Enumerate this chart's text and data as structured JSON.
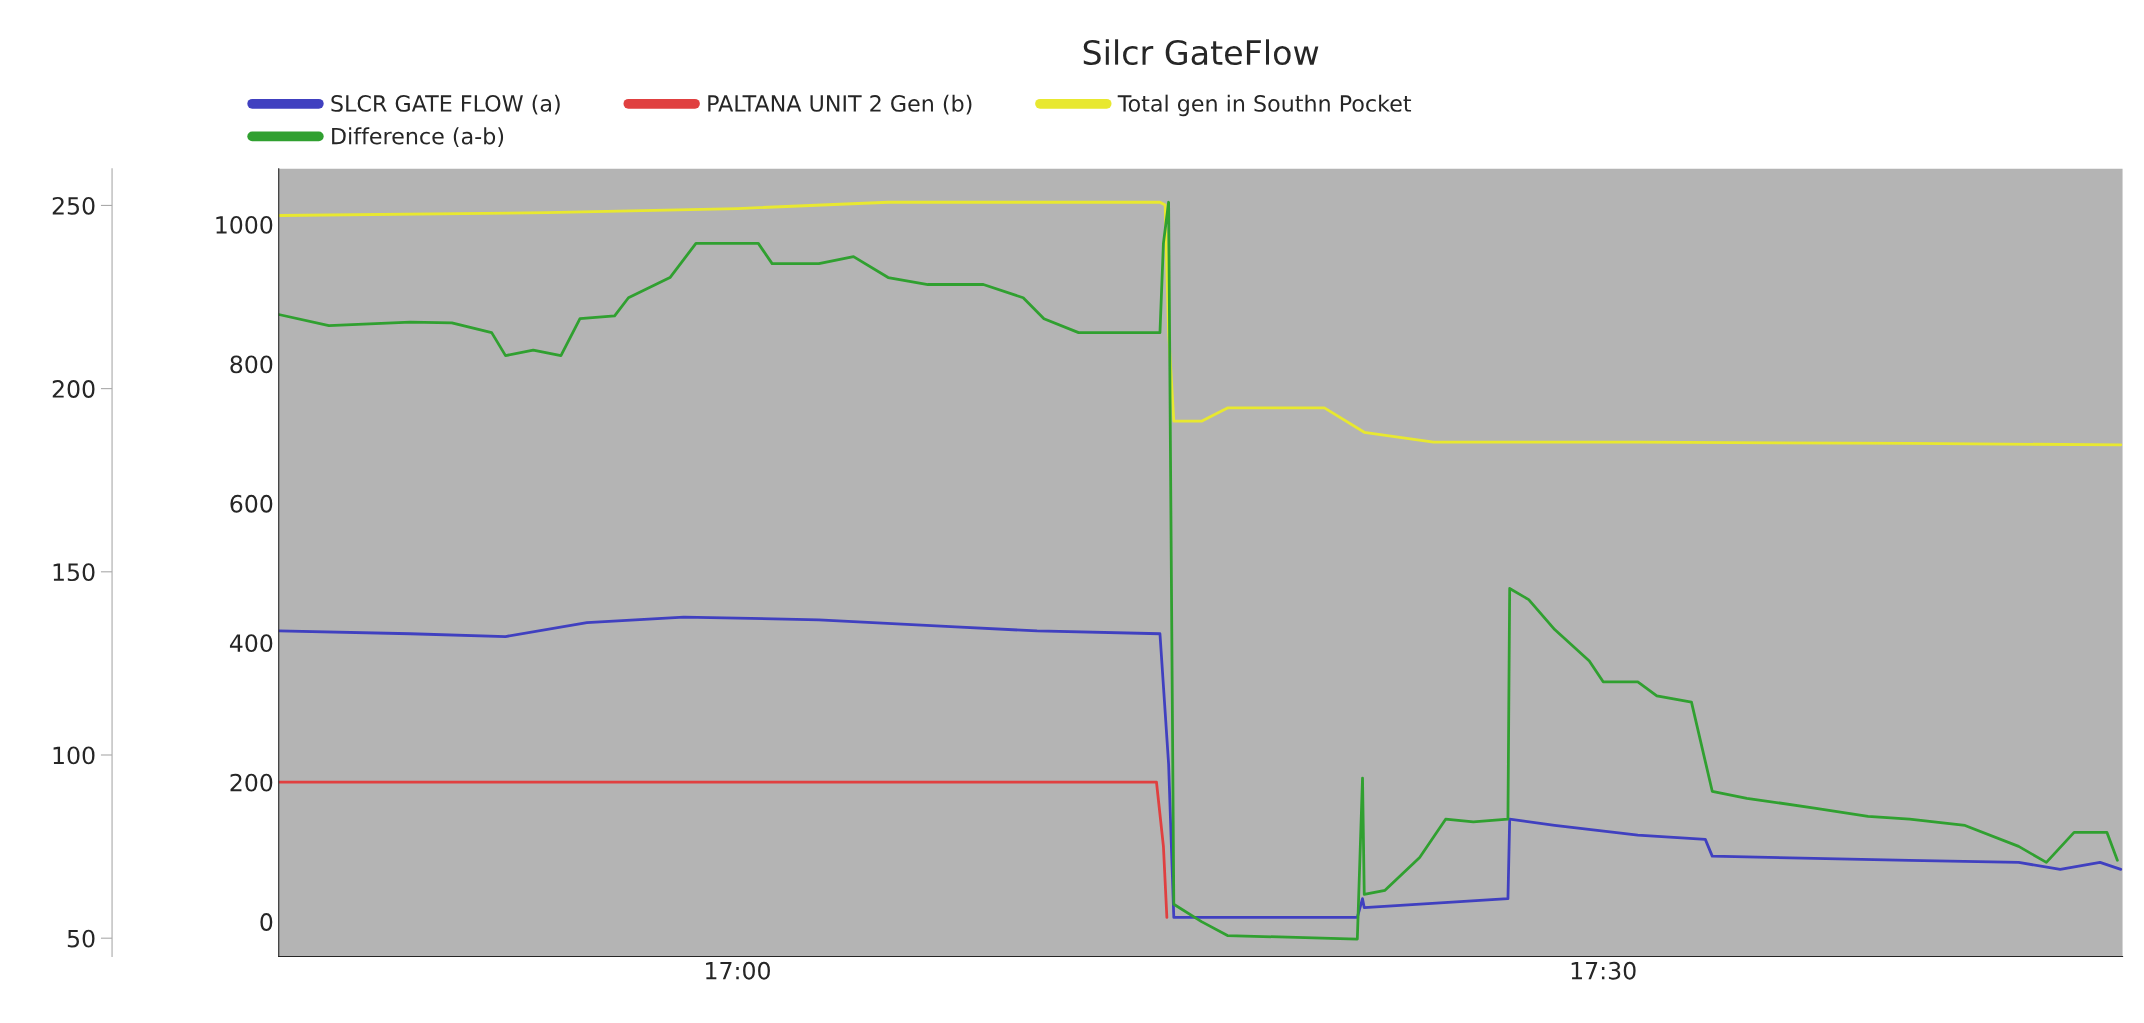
{
  "chart_data": {
    "type": "line",
    "title": "Silcr GateFlow",
    "xlim": [
      16.735,
      17.8
    ],
    "xticks": [
      {
        "value": 17,
        "label": "17:00"
      },
      {
        "value": 17.5,
        "label": "17:30"
      }
    ],
    "ylim": [
      -50,
      1080
    ],
    "yticks": [
      0,
      200,
      400,
      600,
      800,
      1000
    ],
    "y2lim": [
      45,
      260
    ],
    "y2ticks": [
      50,
      100,
      150,
      200,
      250
    ],
    "grid": false,
    "legend": "top",
    "marker": "none",
    "line_style": "solid",
    "series": [
      {
        "name": "SLCR GATE FLOW (a)",
        "color": "#4040c0",
        "x": [
          16.735,
          16.811,
          16.866,
          16.913,
          16.969,
          17.047,
          17.126,
          17.173,
          17.244,
          17.249,
          17.252,
          17.358,
          17.361,
          17.362,
          17.445,
          17.446,
          17.472,
          17.52,
          17.559,
          17.563,
          17.677,
          17.74,
          17.764,
          17.787,
          17.799
        ],
        "values": [
          417,
          413,
          409,
          429,
          437,
          433,
          423,
          417,
          413,
          226,
          6,
          6,
          33,
          20,
          33,
          147,
          138,
          124,
          118,
          94,
          88,
          85,
          75,
          85,
          75
        ]
      },
      {
        "name": "PALTANA UNIT 2 Gen (b)",
        "color": "#e04040",
        "x": [
          16.735,
          17.242,
          17.246,
          17.248
        ],
        "values": [
          200,
          200,
          108,
          6
        ]
      },
      {
        "name": "Total gen in Southn Pocket",
        "color": "#e8e830",
        "x": [
          16.735,
          16.89,
          17.0,
          17.087,
          17.244,
          17.247,
          17.249,
          17.252,
          17.268,
          17.283,
          17.339,
          17.362,
          17.402,
          17.52,
          17.677,
          17.799
        ],
        "values": [
          1013,
          1017,
          1023,
          1032,
          1032,
          1028,
          846,
          718,
          718,
          737,
          737,
          702,
          688,
          688,
          686,
          684
        ]
      },
      {
        "name": "Difference (a-b)",
        "color": "#30a030",
        "x": [
          16.735,
          16.764,
          16.811,
          16.835,
          16.858,
          16.866,
          16.882,
          16.898,
          16.909,
          16.929,
          16.937,
          16.961,
          16.976,
          17.012,
          17.02,
          17.047,
          17.067,
          17.087,
          17.11,
          17.142,
          17.165,
          17.177,
          17.197,
          17.244,
          17.246,
          17.249,
          17.252,
          17.268,
          17.283,
          17.358,
          17.361,
          17.362,
          17.374,
          17.394,
          17.409,
          17.425,
          17.445,
          17.446,
          17.457,
          17.472,
          17.492,
          17.5,
          17.52,
          17.531,
          17.551,
          17.563,
          17.583,
          17.622,
          17.653,
          17.677,
          17.709,
          17.74,
          17.756,
          17.772,
          17.791,
          17.797
        ],
        "values": [
          871,
          855,
          860,
          859,
          845,
          812,
          820,
          812,
          865,
          869,
          895,
          924,
          973,
          973,
          944,
          944,
          954,
          924,
          914,
          914,
          895,
          865,
          845,
          845,
          973,
          1032,
          25,
          0,
          -20,
          -25,
          206,
          39,
          45,
          92,
          147,
          143,
          147,
          478,
          462,
          419,
          374,
          344,
          344,
          324,
          315,
          187,
          177,
          163,
          151,
          147,
          138,
          108,
          85,
          128,
          128,
          88
        ]
      }
    ]
  }
}
